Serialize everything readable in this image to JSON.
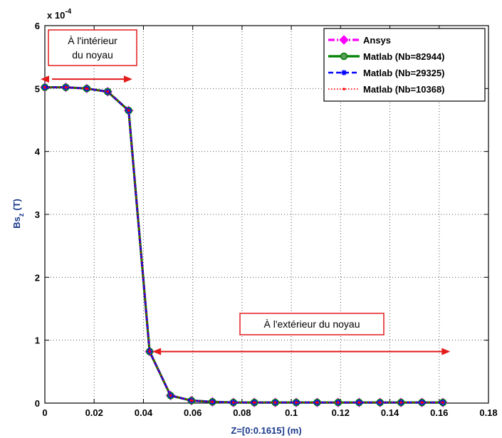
{
  "chart_data": {
    "type": "line",
    "exponent_label": "x 10",
    "exponent_power": "-4",
    "xlabel": "Z=[0:0.1615] (m)",
    "ylabel_main": "Bs",
    "ylabel_sub": "z",
    "ylabel_unit": " (T)",
    "xlim": [
      0,
      0.18
    ],
    "ylim": [
      0,
      6
    ],
    "xticks": [
      "0",
      "0.02",
      "0.04",
      "0.06",
      "0.08",
      "0.1",
      "0.12",
      "0.14",
      "0.16",
      "0.18"
    ],
    "yticks": [
      "0",
      "1",
      "2",
      "3",
      "4",
      "5",
      "6"
    ],
    "grid": true,
    "legend_position": "top-right",
    "x": [
      0,
      0.0085,
      0.017,
      0.0255,
      0.034,
      0.0425,
      0.051,
      0.0595,
      0.068,
      0.0765,
      0.085,
      0.0935,
      0.102,
      0.1105,
      0.119,
      0.1275,
      0.136,
      0.1445,
      0.153,
      0.1615
    ],
    "series": [
      {
        "name": "Ansys",
        "color": "#ff00ff",
        "style": "dash-dot",
        "marker": "diamond",
        "values": [
          5.02,
          5.02,
          5.0,
          4.95,
          4.65,
          0.82,
          0.12,
          0.04,
          0.02,
          0.01,
          0.01,
          0.01,
          0.01,
          0.01,
          0.01,
          0.01,
          0.01,
          0.01,
          0.01,
          0.01
        ]
      },
      {
        "name": "Matlab (Nb=82944)",
        "color": "#008000",
        "style": "solid",
        "marker": "circle",
        "values": [
          5.02,
          5.02,
          5.0,
          4.95,
          4.65,
          0.82,
          0.12,
          0.04,
          0.02,
          0.01,
          0.01,
          0.01,
          0.01,
          0.01,
          0.01,
          0.01,
          0.01,
          0.01,
          0.01,
          0.01
        ]
      },
      {
        "name": "Matlab (Nb=29325)",
        "color": "#0000ff",
        "style": "dashed",
        "marker": "star",
        "values": [
          5.02,
          5.02,
          5.0,
          4.95,
          4.65,
          0.82,
          0.12,
          0.04,
          0.02,
          0.01,
          0.01,
          0.01,
          0.01,
          0.01,
          0.01,
          0.01,
          0.01,
          0.01,
          0.01,
          0.01
        ]
      },
      {
        "name": "Matlab (Nb=10368)",
        "color": "#ff0000",
        "style": "dotted",
        "marker": "dot",
        "values": [
          5.02,
          5.02,
          5.0,
          4.95,
          4.65,
          0.82,
          0.12,
          0.04,
          0.02,
          0.01,
          0.01,
          0.01,
          0.01,
          0.01,
          0.01,
          0.01,
          0.01,
          0.01,
          0.01,
          0.01
        ]
      }
    ],
    "annotations": [
      {
        "lines": [
          "À l'intérieur",
          "du noyau"
        ],
        "arrow_x": [
          0,
          0.0355
        ],
        "arrow_y": 5.15
      },
      {
        "lines": [
          "À l'extérieur du noyau"
        ],
        "arrow_x": [
          0.0425,
          0.1645
        ],
        "arrow_y": 0.82
      }
    ],
    "annotation_color": "#e31b1b"
  }
}
